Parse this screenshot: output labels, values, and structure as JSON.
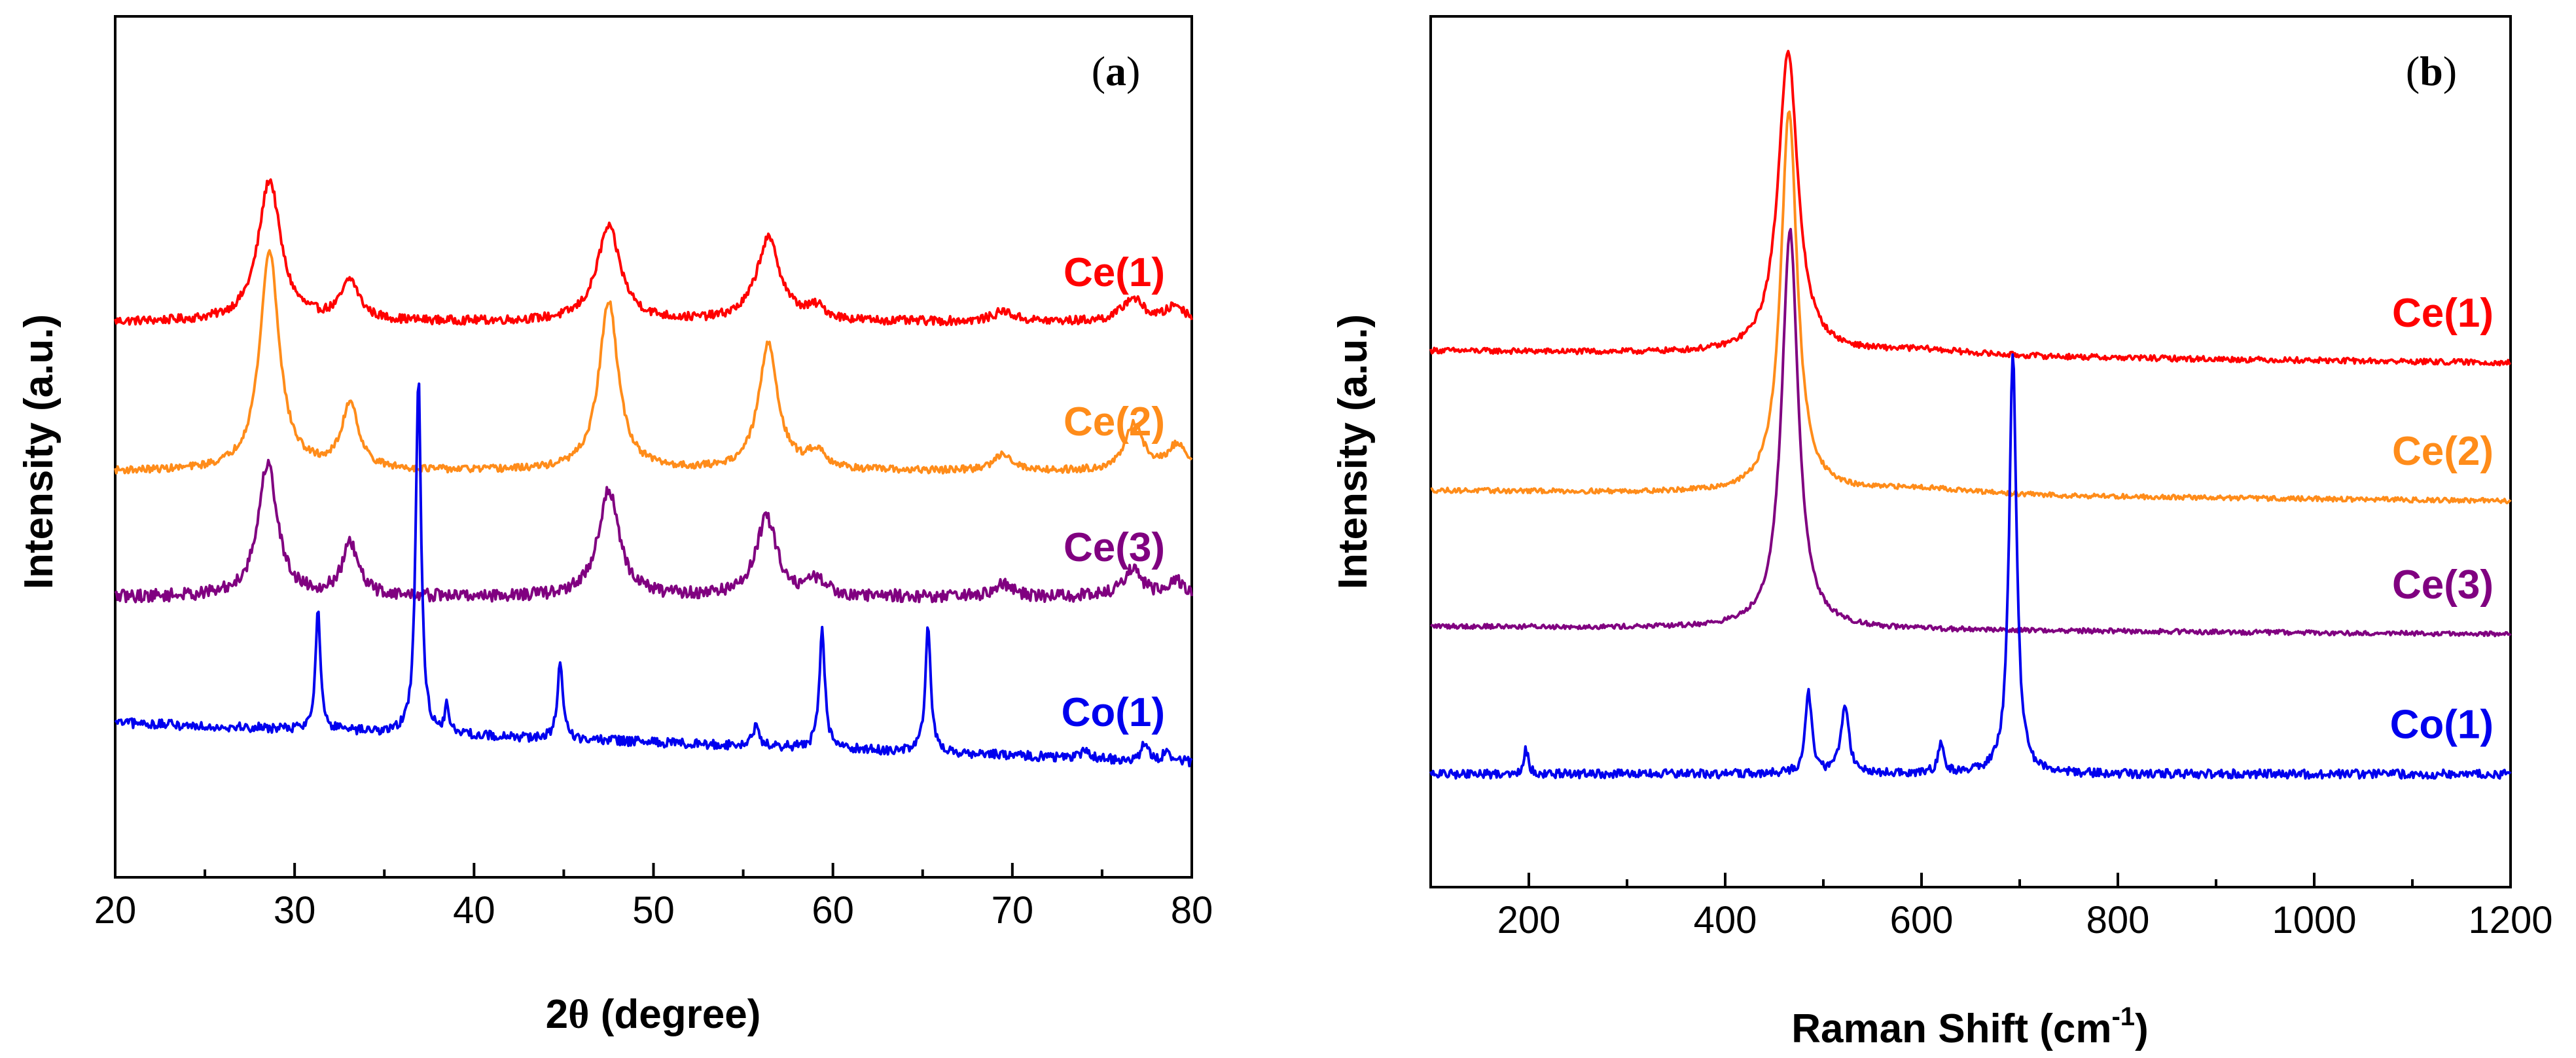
{
  "chart_data": [
    {
      "type": "line",
      "panel_label": "a",
      "title": "",
      "xlabel_prefix": "2",
      "xlabel_theta": "θ",
      "xlabel_suffix": " (degree)",
      "ylabel": "Intensity (a.u.)",
      "xlim": [
        20,
        80
      ],
      "ylim": [
        0,
        100
      ],
      "xticks": [
        20,
        30,
        40,
        50,
        60,
        70,
        80
      ],
      "y_ticks_shown": false,
      "legend": "inline labels at right",
      "series": [
        {
          "name": "Ce(1)",
          "color": "#ff0000",
          "baseline": 64,
          "noise": 0.55,
          "slope": [
            0,
            0
          ],
          "peaks": [
            [
              28.6,
              18,
              0.75
            ],
            [
              33.1,
              5,
              0.6
            ],
            [
              47.5,
              12,
              0.8
            ],
            [
              56.4,
              10.5,
              0.8
            ],
            [
              59.1,
              1.5,
              0.6
            ],
            [
              69.5,
              1.3,
              0.7
            ],
            [
              76.7,
              3,
              0.7
            ],
            [
              79.1,
              2,
              0.6
            ]
          ]
        },
        {
          "name": "Ce(2)",
          "color": "#ff8c1a",
          "baseline": 45,
          "noise": 0.45,
          "slope": [
            0,
            0
          ],
          "peaks": [
            [
              28.6,
              28,
              0.65
            ],
            [
              33.1,
              8.5,
              0.55
            ],
            [
              47.5,
              21.5,
              0.65
            ],
            [
              56.4,
              16,
              0.65
            ],
            [
              59.1,
              2.3,
              0.6
            ],
            [
              69.5,
              2.2,
              0.6
            ],
            [
              76.8,
              6,
              0.6
            ],
            [
              79.2,
              3.3,
              0.6
            ]
          ]
        },
        {
          "name": "Ce(3)",
          "color": "#800080",
          "baseline": 29,
          "noise": 0.8,
          "slope": [
            0,
            0
          ],
          "peaks": [
            [
              28.5,
              17,
              0.65
            ],
            [
              33.1,
              6.5,
              0.55
            ],
            [
              47.5,
              13.5,
              0.7
            ],
            [
              56.3,
              10,
              0.7
            ],
            [
              59.1,
              2,
              0.6
            ],
            [
              69.5,
              1.5,
              0.6
            ],
            [
              76.7,
              3.5,
              0.6
            ],
            [
              79.1,
              2,
              0.6
            ]
          ]
        },
        {
          "name": "Co(1)",
          "color": "#0000ee",
          "baseline": 8,
          "noise": 0.6,
          "slope": [
            5,
            0
          ],
          "peaks": [
            [
              31.3,
              16,
              0.16
            ],
            [
              36.9,
              45.5,
              0.18
            ],
            [
              38.5,
              3.5,
              0.15
            ],
            [
              44.8,
              9.5,
              0.18
            ],
            [
              55.7,
              2.5,
              0.2
            ],
            [
              59.4,
              15.5,
              0.18
            ],
            [
              65.3,
              16.5,
              0.18
            ],
            [
              74.1,
              1.2,
              0.2
            ],
            [
              77.4,
              2.5,
              0.2
            ],
            [
              78.6,
              1.5,
              0.2
            ]
          ]
        }
      ]
    },
    {
      "type": "line",
      "panel_label": "b",
      "title": "",
      "xlabel_prefix": "Raman Shift (cm",
      "xlabel_sup": "-1",
      "xlabel_suffix": ")",
      "ylabel": "Intensity (a.u.)",
      "xlim": [
        100,
        1200
      ],
      "ylim": [
        0,
        100
      ],
      "xticks": [
        200,
        400,
        600,
        800,
        1000,
        1200
      ],
      "y_ticks_shown": false,
      "legend": "inline labels at right",
      "series": [
        {
          "name": "Ce(1)",
          "color": "#ff0000",
          "baseline": 60,
          "noise": 0.35,
          "slope": [
            1,
            -0.5
          ],
          "peaks": [
            [
              464,
              38,
              12
            ],
            [
              600,
              0.7,
              60
            ]
          ]
        },
        {
          "name": "Ce(2)",
          "color": "#ff8c1a",
          "baseline": 43,
          "noise": 0.3,
          "slope": [
            0.5,
            -0.8
          ],
          "peaks": [
            [
              465,
              48,
              10
            ],
            [
              600,
              0.8,
              60
            ]
          ]
        },
        {
          "name": "Ce(3)",
          "color": "#800080",
          "baseline": 26,
          "noise": 0.3,
          "slope": [
            0.5,
            -0.5
          ],
          "peaks": [
            [
              466,
              50,
              10
            ]
          ]
        },
        {
          "name": "Co(1)",
          "color": "#0000ee",
          "baseline": 8,
          "noise": 0.55,
          "slope": [
            0,
            0
          ],
          "peaks": [
            [
              197,
              3,
              3
            ],
            [
              485,
              10,
              4
            ],
            [
              522,
              8.5,
              5
            ],
            [
              620,
              3.5,
              4
            ],
            [
              693,
              53,
              4.5
            ]
          ]
        }
      ]
    }
  ]
}
